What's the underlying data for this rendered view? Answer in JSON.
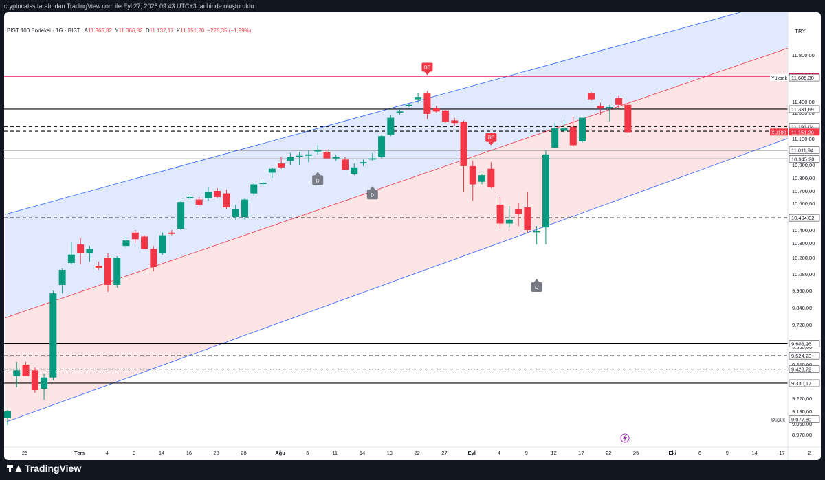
{
  "header": {
    "caption": "cryptocatss tarafından TradingView.com ile Eyl 27, 2025 09:43 UTC+3 tarihinde oluşturuldu"
  },
  "legend": {
    "symbol": "BIST 100 Endeksi · 1G · BIST",
    "open_label": "A",
    "open": "11.366,82",
    "high_label": "Y",
    "high": "11.366,82",
    "low_label": "D",
    "low": "11.137,17",
    "close_label": "K",
    "close": "11.151,20",
    "change": "−226,35 (−1,99%)"
  },
  "currency": "TRY",
  "footer": {
    "brand": "TradingView"
  },
  "colors": {
    "up": "#089981",
    "down": "#f23645",
    "upper_band": "#dbe5fd",
    "lower_band": "#fde0e1",
    "band_line_blue": "#2962ff",
    "band_line_red": "#f23645",
    "magenta": "#e91e63"
  },
  "chart_data": {
    "type": "candlestick",
    "currency": "TRY",
    "ylim": [
      8900,
      12300
    ],
    "y_ticks": [
      8970,
      9050,
      9130,
      9220,
      9340,
      9460,
      9590,
      9720,
      9840,
      9960,
      10080,
      10200,
      10300,
      10400,
      10500,
      10600,
      10700,
      10800,
      10900,
      11000,
      11100,
      11200,
      11300,
      11400,
      11600,
      11800
    ],
    "y_tick_labels": [
      "8.970,00",
      "9.050,00",
      "9.130,00",
      "9.220,00",
      "9.340,00",
      "9.460,00",
      "9.590,00",
      "9.720,00",
      "9.840,00",
      "9.960,00",
      "10.080,00",
      "10.200,00",
      "10.300,00",
      "10.400,00",
      "10.500,00",
      "10.600,00",
      "10.700,00",
      "10.800,00",
      "10.900,00",
      "11.000,00",
      "11.100,00",
      "11.200,00",
      "11.300,00",
      "11.400,00",
      "11.600,00",
      "11.800,00"
    ],
    "x_labels": [
      {
        "label": "25",
        "day": 0
      },
      {
        "label": "Tem",
        "day": 6
      },
      {
        "label": "4",
        "day": 9
      },
      {
        "label": "9",
        "day": 12
      },
      {
        "label": "14",
        "day": 15
      },
      {
        "label": "16",
        "day": 18
      },
      {
        "label": "23",
        "day": 21
      },
      {
        "label": "28",
        "day": 24
      },
      {
        "label": "Ağu",
        "day": 28
      },
      {
        "label": "6",
        "day": 31
      },
      {
        "label": "11",
        "day": 34
      },
      {
        "label": "14",
        "day": 37
      },
      {
        "label": "19",
        "day": 40
      },
      {
        "label": "22",
        "day": 43
      },
      {
        "label": "27",
        "day": 46
      },
      {
        "label": "Eyl",
        "day": 49
      },
      {
        "label": "4",
        "day": 52
      },
      {
        "label": "9",
        "day": 55
      },
      {
        "label": "12",
        "day": 58
      },
      {
        "label": "17",
        "day": 61
      },
      {
        "label": "22",
        "day": 64
      },
      {
        "label": "25",
        "day": 67
      },
      {
        "label": "Eki",
        "day": 71
      },
      {
        "label": "6",
        "day": 74
      },
      {
        "label": "9",
        "day": 77
      },
      {
        "label": "14",
        "day": 80
      },
      {
        "label": "17",
        "day": 83
      },
      {
        "label": "2",
        "day": 86
      }
    ],
    "candles": [
      {
        "o": 9090,
        "h": 9140,
        "l": 9040,
        "c": 9130
      },
      {
        "o": 9380,
        "h": 9480,
        "l": 9300,
        "c": 9420
      },
      {
        "o": 9460,
        "h": 9480,
        "l": 9380,
        "c": 9380
      },
      {
        "o": 9420,
        "h": 9440,
        "l": 9260,
        "c": 9280
      },
      {
        "o": 9290,
        "h": 9400,
        "l": 9210,
        "c": 9370
      },
      {
        "o": 9370,
        "h": 9960,
        "l": 9350,
        "c": 9940
      },
      {
        "o": 10000,
        "h": 10120,
        "l": 9940,
        "c": 10110
      },
      {
        "o": 10160,
        "h": 10310,
        "l": 10150,
        "c": 10220
      },
      {
        "o": 10290,
        "h": 10340,
        "l": 10150,
        "c": 10230
      },
      {
        "o": 10230,
        "h": 10280,
        "l": 10170,
        "c": 10260
      },
      {
        "o": 10140,
        "h": 10170,
        "l": 10110,
        "c": 10120
      },
      {
        "o": 10200,
        "h": 10230,
        "l": 9950,
        "c": 10000
      },
      {
        "o": 10000,
        "h": 10210,
        "l": 9980,
        "c": 10200
      },
      {
        "o": 10280,
        "h": 10350,
        "l": 10270,
        "c": 10320
      },
      {
        "o": 10380,
        "h": 10400,
        "l": 10300,
        "c": 10330
      },
      {
        "o": 10350,
        "h": 10360,
        "l": 10270,
        "c": 10260
      },
      {
        "o": 10260,
        "h": 10280,
        "l": 10100,
        "c": 10130
      },
      {
        "o": 10230,
        "h": 10380,
        "l": 10220,
        "c": 10360
      },
      {
        "o": 10380,
        "h": 10400,
        "l": 10360,
        "c": 10370
      },
      {
        "o": 10410,
        "h": 10620,
        "l": 10400,
        "c": 10610
      },
      {
        "o": 10650,
        "h": 10660,
        "l": 10630,
        "c": 10650
      },
      {
        "o": 10630,
        "h": 10650,
        "l": 10570,
        "c": 10590
      },
      {
        "o": 10640,
        "h": 10730,
        "l": 10620,
        "c": 10690
      },
      {
        "o": 10700,
        "h": 10720,
        "l": 10640,
        "c": 10650
      },
      {
        "o": 10680,
        "h": 10710,
        "l": 10560,
        "c": 10570
      },
      {
        "o": 10500,
        "h": 10590,
        "l": 10480,
        "c": 10560
      },
      {
        "o": 10500,
        "h": 10640,
        "l": 10480,
        "c": 10630
      },
      {
        "o": 10680,
        "h": 10760,
        "l": 10660,
        "c": 10750
      },
      {
        "o": 10760,
        "h": 10780,
        "l": 10740,
        "c": 10760
      },
      {
        "o": 10840,
        "h": 10880,
        "l": 10800,
        "c": 10870
      },
      {
        "o": 10910,
        "h": 10960,
        "l": 10870,
        "c": 10880
      },
      {
        "o": 10930,
        "h": 10990,
        "l": 10900,
        "c": 10960
      },
      {
        "o": 10960,
        "h": 11000,
        "l": 10900,
        "c": 10970
      },
      {
        "o": 10970,
        "h": 11010,
        "l": 10920,
        "c": 10980
      },
      {
        "o": 11010,
        "h": 11050,
        "l": 10980,
        "c": 11010
      },
      {
        "o": 11000,
        "h": 11020,
        "l": 10950,
        "c": 10950
      },
      {
        "o": 10950,
        "h": 10980,
        "l": 10930,
        "c": 10960
      },
      {
        "o": 10940,
        "h": 10960,
        "l": 10860,
        "c": 10860
      },
      {
        "o": 10830,
        "h": 10910,
        "l": 10820,
        "c": 10880
      },
      {
        "o": 10910,
        "h": 10940,
        "l": 10890,
        "c": 10920
      },
      {
        "o": 10940,
        "h": 10990,
        "l": 10930,
        "c": 10950
      },
      {
        "o": 10960,
        "h": 11130,
        "l": 10950,
        "c": 11120
      },
      {
        "o": 11130,
        "h": 11280,
        "l": 11120,
        "c": 11260
      },
      {
        "o": 11300,
        "h": 11330,
        "l": 11280,
        "c": 11310
      },
      {
        "o": 11360,
        "h": 11380,
        "l": 11350,
        "c": 11370
      },
      {
        "o": 11420,
        "h": 11470,
        "l": 11390,
        "c": 11440
      },
      {
        "o": 11470,
        "h": 11490,
        "l": 11250,
        "c": 11290
      },
      {
        "o": 11340,
        "h": 11360,
        "l": 11300,
        "c": 11310
      },
      {
        "o": 11320,
        "h": 11330,
        "l": 11220,
        "c": 11230
      },
      {
        "o": 11240,
        "h": 11260,
        "l": 11200,
        "c": 11220
      },
      {
        "o": 11230,
        "h": 11240,
        "l": 10690,
        "c": 10890
      },
      {
        "o": 10890,
        "h": 10930,
        "l": 10620,
        "c": 10750
      },
      {
        "o": 10770,
        "h": 10830,
        "l": 10750,
        "c": 10820
      },
      {
        "o": 10870,
        "h": 10920,
        "l": 10720,
        "c": 10730
      },
      {
        "o": 10590,
        "h": 10650,
        "l": 10410,
        "c": 10450
      },
      {
        "o": 10450,
        "h": 10580,
        "l": 10420,
        "c": 10480
      },
      {
        "o": 10560,
        "h": 10600,
        "l": 10430,
        "c": 10520
      },
      {
        "o": 10570,
        "h": 10690,
        "l": 10380,
        "c": 10400
      },
      {
        "o": 10390,
        "h": 10430,
        "l": 10290,
        "c": 10390
      },
      {
        "o": 10420,
        "h": 11010,
        "l": 10290,
        "c": 10980
      },
      {
        "o": 11030,
        "h": 11220,
        "l": 11030,
        "c": 11180
      },
      {
        "o": 11160,
        "h": 11240,
        "l": 11150,
        "c": 11180
      },
      {
        "o": 11190,
        "h": 11270,
        "l": 11040,
        "c": 11050
      },
      {
        "o": 11080,
        "h": 11260,
        "l": 11070,
        "c": 11260
      },
      {
        "o": 11470,
        "h": 11480,
        "l": 11410,
        "c": 11420
      },
      {
        "o": 11360,
        "h": 11390,
        "l": 11280,
        "c": 11340
      },
      {
        "o": 11340,
        "h": 11370,
        "l": 11230,
        "c": 11350
      },
      {
        "o": 11430,
        "h": 11450,
        "l": 11340,
        "c": 11370
      },
      {
        "o": 11370,
        "h": 11370,
        "l": 11140,
        "c": 11150
      }
    ],
    "channel": {
      "upper_top": {
        "x0": 0,
        "y0": 10520,
        "x1": 89,
        "y1": 12900
      },
      "middle": {
        "x0": 0,
        "y0": 9770,
        "x1": 89,
        "y1": 11940
      },
      "lower_bottom": {
        "x0": 0,
        "y0": 9060,
        "x1": 89,
        "y1": 11180
      }
    },
    "horizontal_levels": [
      {
        "value": 11617.1,
        "label": "11.617,10",
        "style": "solid",
        "color": "#e91e63",
        "tag_bg": "#e91e63"
      },
      {
        "value": 11605.3,
        "label": "11.605,30",
        "style": "none",
        "color": "#e91e63",
        "tag_bg": "#ffffff",
        "tag_fg": "#131722",
        "side_label": "Yüksek"
      },
      {
        "value": 11331.69,
        "label": "11.331,69",
        "style": "solid",
        "color": "#000000"
      },
      {
        "value": 11193.04,
        "label": "11.193,04",
        "style": "dashed",
        "color": "#000000"
      },
      {
        "value": 11157.49,
        "label": "11.157,49",
        "style": "dashed",
        "color": "#000000"
      },
      {
        "value": 11151.2,
        "label": "11.151,20",
        "style": "none",
        "color": "#f23645",
        "tag_bg": "#f23645",
        "side_label": "XU100",
        "side_bg": "#f23645"
      },
      {
        "value": 11011.94,
        "label": "11.011,94",
        "style": "solid",
        "color": "#000000"
      },
      {
        "value": 10945.2,
        "label": "10.945,20",
        "style": "solid",
        "color": "#000000"
      },
      {
        "value": 10494.02,
        "label": "10.494,02",
        "style": "dashed",
        "color": "#000000"
      },
      {
        "value": 9608.26,
        "label": "9.608,26",
        "style": "solid",
        "color": "#000000"
      },
      {
        "value": 9524.23,
        "label": "9.524,23",
        "style": "dashed",
        "color": "#000000"
      },
      {
        "value": 9428.72,
        "label": "9.428,72",
        "style": "dashed",
        "color": "#000000"
      },
      {
        "value": 9330.17,
        "label": "9.330,17",
        "style": "solid",
        "color": "#000000"
      },
      {
        "value": 9077.8,
        "label": "9.077,80",
        "style": "none",
        "color": "#787b86",
        "tag_bg": "#ffffff",
        "tag_fg": "#131722",
        "side_label": "Düşük"
      }
    ],
    "markers": [
      {
        "text": "BE",
        "index": 46,
        "value": 11650,
        "kind": "down-flag",
        "color": "#f23645"
      },
      {
        "text": "BE",
        "index": 53,
        "value": 11070,
        "kind": "down-flag",
        "color": "#f23645"
      },
      {
        "text": "D",
        "index": 34,
        "value": 10840,
        "kind": "up-flag",
        "color": "#787b86"
      },
      {
        "text": "D",
        "index": 40,
        "value": 10730,
        "kind": "up-flag",
        "color": "#787b86"
      },
      {
        "text": "D",
        "index": 58,
        "value": 10040,
        "kind": "up-flag",
        "color": "#787b86"
      }
    ]
  }
}
